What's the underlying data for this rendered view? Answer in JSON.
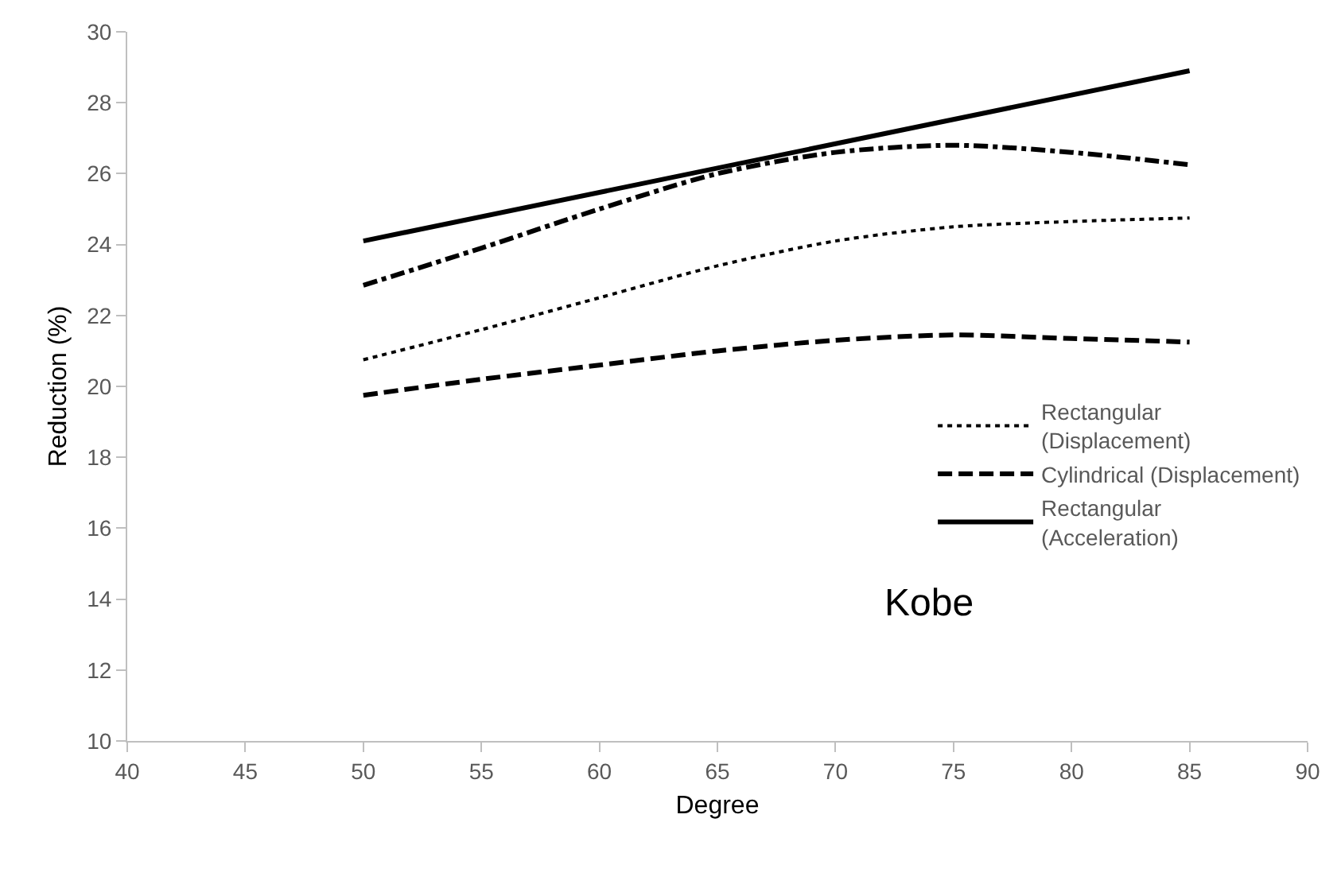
{
  "chart_data": {
    "type": "line",
    "xlabel": "Degree",
    "ylabel": "Reduction (%)",
    "xlim": [
      40,
      90
    ],
    "xticks": [
      40,
      45,
      50,
      55,
      60,
      65,
      70,
      75,
      80,
      85,
      90
    ],
    "ylim": [
      10,
      30
    ],
    "yticks": [
      10,
      12,
      14,
      16,
      18,
      20,
      22,
      24,
      26,
      28,
      30
    ],
    "legend": "right",
    "marker": "none",
    "annotations": [
      "Kobe"
    ],
    "series": [
      {
        "name": "Rectangular\n(Displacement)",
        "color": "#000000",
        "line_style": "dotted",
        "x": [
          50,
          55,
          60,
          65,
          70,
          75,
          80,
          85
        ],
        "values": [
          20.75,
          21.6,
          22.5,
          23.4,
          24.1,
          24.5,
          24.65,
          24.75
        ]
      },
      {
        "name": "Cylindrical (Displacement)",
        "color": "#000000",
        "line_style": "dashed",
        "x": [
          50,
          55,
          60,
          65,
          70,
          75,
          80,
          85
        ],
        "values": [
          19.75,
          20.2,
          20.6,
          21.0,
          21.3,
          21.45,
          21.35,
          21.25
        ]
      },
      {
        "name": "Rectangular\n(Acceleration)",
        "color": "#000000",
        "line_style": "solid",
        "x": [
          50,
          85
        ],
        "values": [
          24.1,
          28.9
        ]
      },
      {
        "color": "#000000",
        "line_style": "dashdot",
        "x": [
          50,
          55,
          60,
          65,
          70,
          75,
          80,
          85
        ],
        "values": [
          22.85,
          23.9,
          25.0,
          26.0,
          26.6,
          26.8,
          26.6,
          26.25
        ]
      }
    ]
  }
}
